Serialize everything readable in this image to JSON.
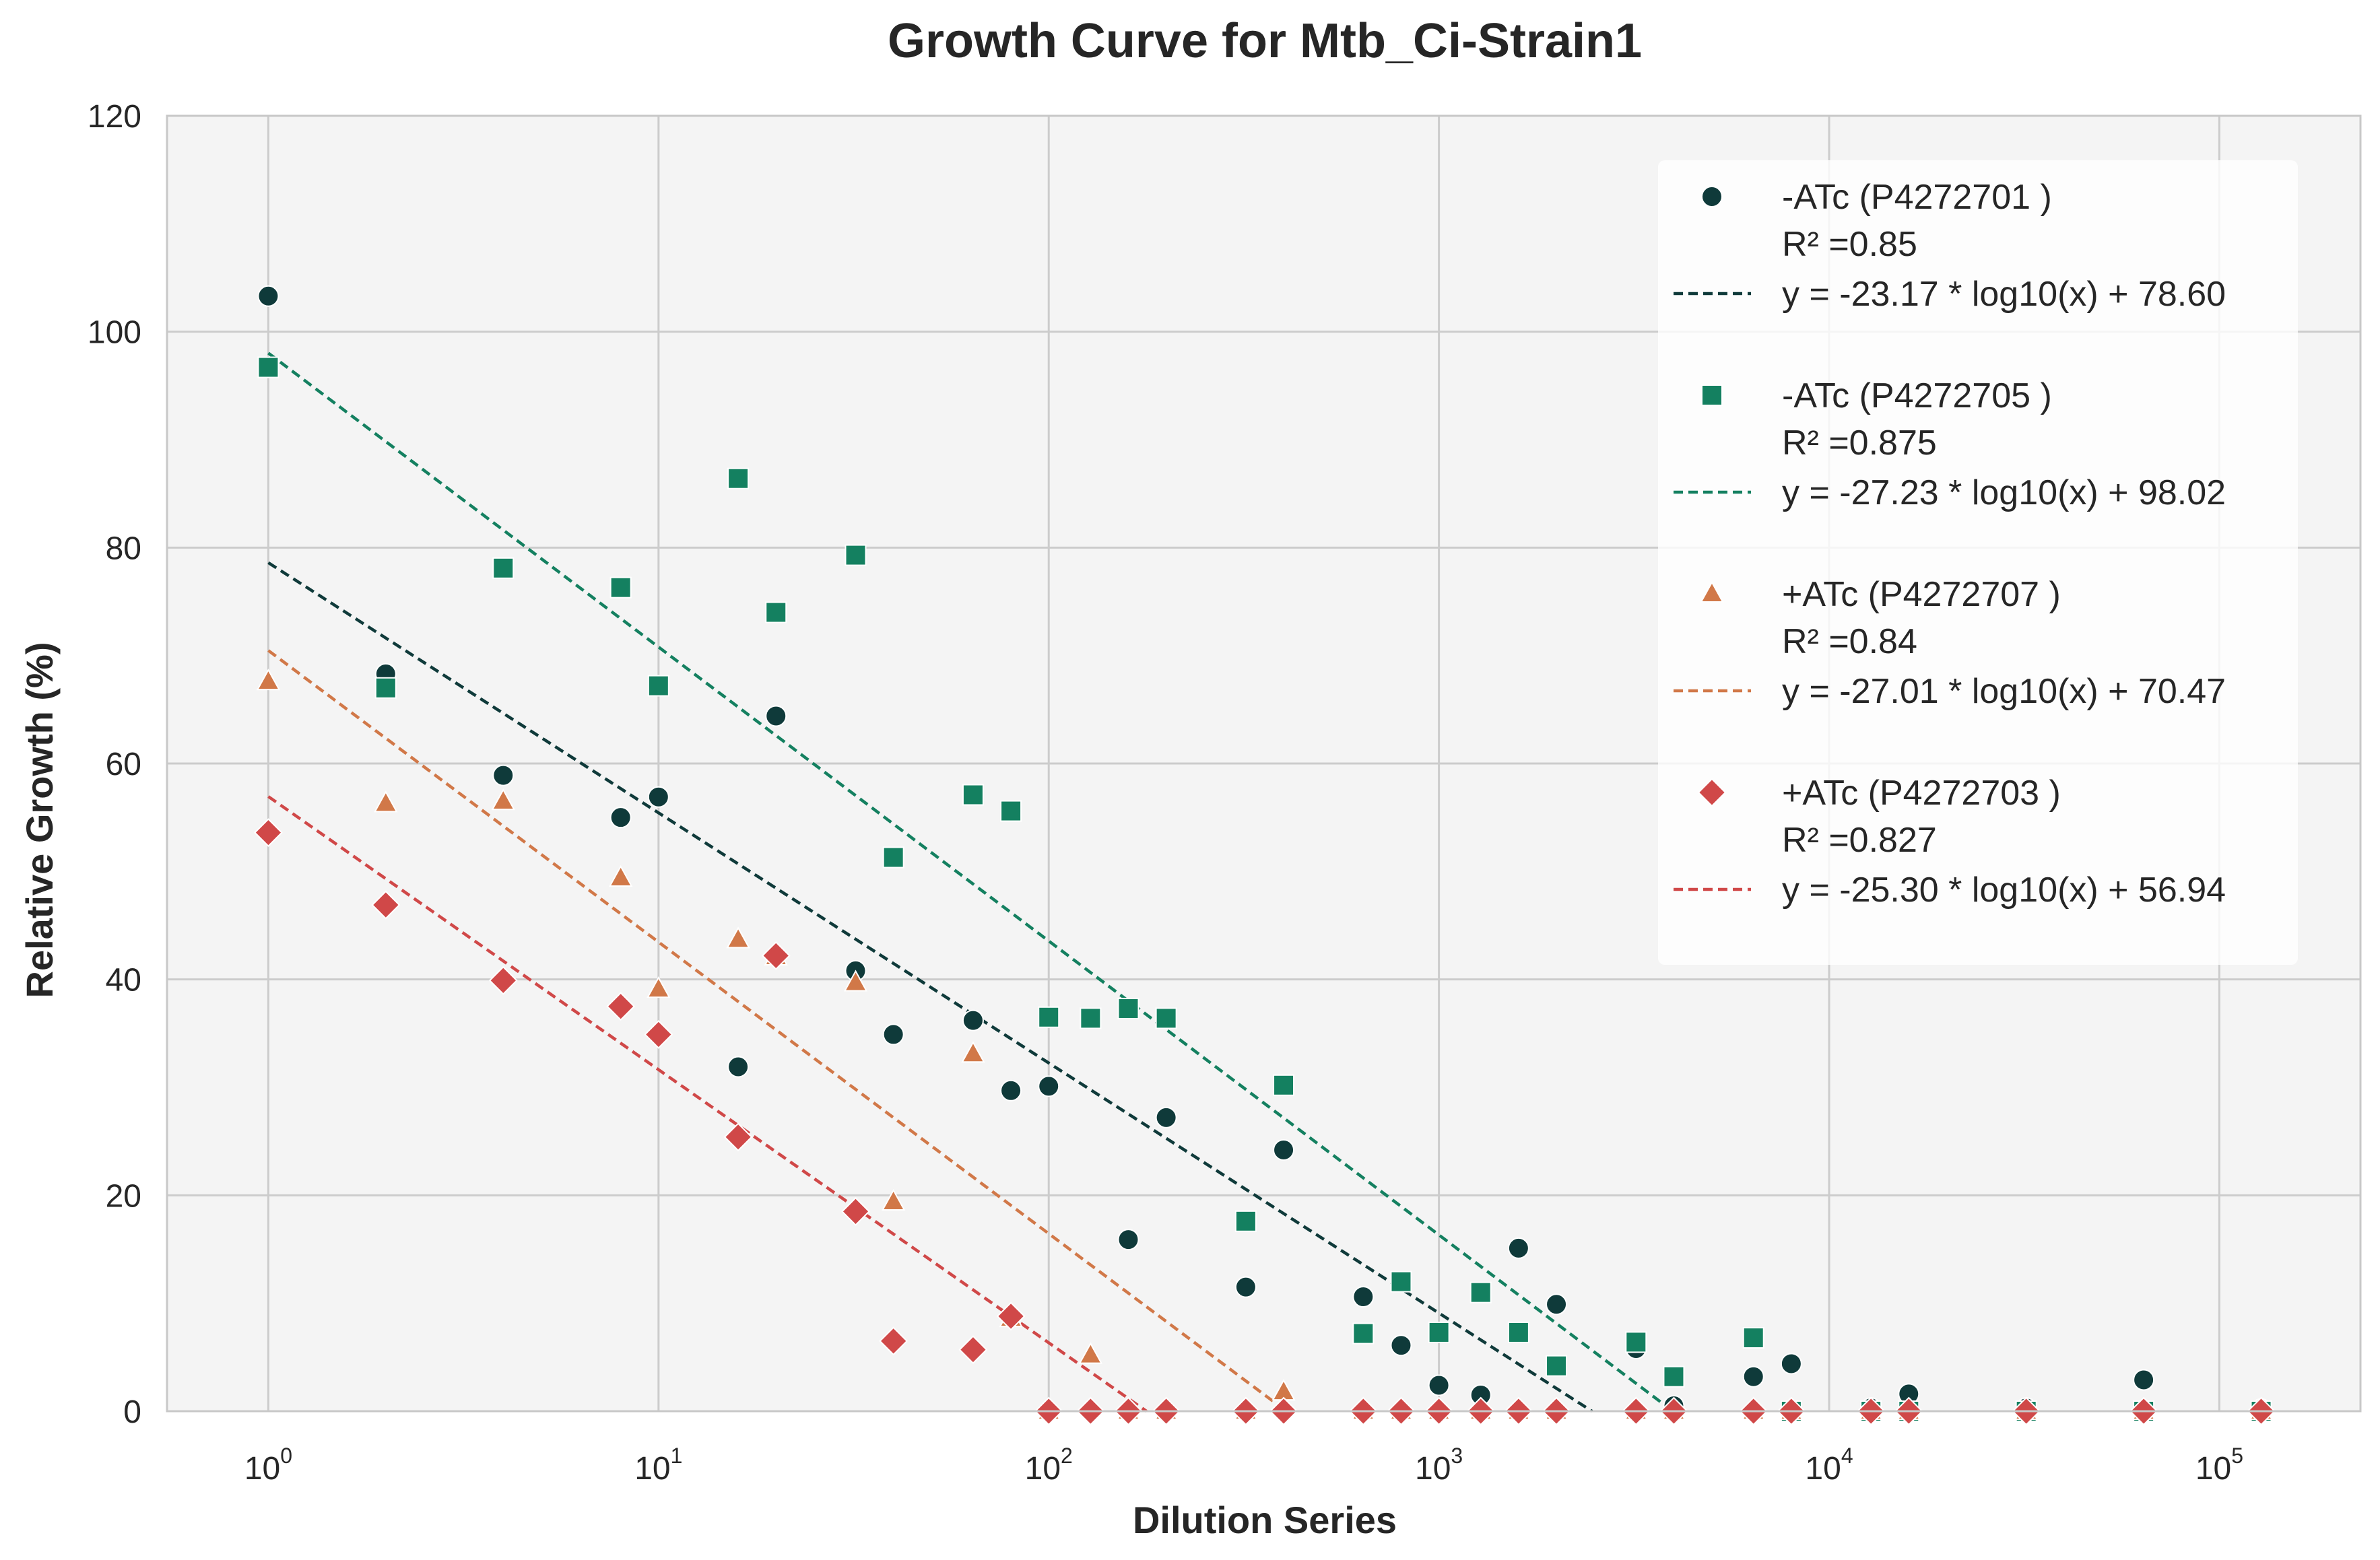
{
  "chart_data": {
    "type": "scatter",
    "title": "Growth Curve for Mtb_Ci-Strain1",
    "xlabel": "Dilution Series",
    "ylabel": "Relative Growth (%)",
    "xscale": "log",
    "xlim": [
      0.55,
      230000
    ],
    "ylim": [
      0,
      120
    ],
    "xticks": [
      1,
      10,
      100,
      1000,
      10000,
      100000
    ],
    "xtick_labels": [
      {
        "base": "10",
        "exp": "0"
      },
      {
        "base": "10",
        "exp": "1"
      },
      {
        "base": "10",
        "exp": "2"
      },
      {
        "base": "10",
        "exp": "3"
      },
      {
        "base": "10",
        "exp": "4"
      },
      {
        "base": "10",
        "exp": "5"
      }
    ],
    "yticks": [
      0,
      20,
      40,
      60,
      80,
      100,
      120
    ],
    "ytick_labels": [
      "0",
      "20",
      "40",
      "60",
      "80",
      "100",
      "120"
    ],
    "grid": true,
    "legend_position": "top-right",
    "series": [
      {
        "name": "-ATc (P4272701 )",
        "marker": "circle",
        "color": "#0f3a3a",
        "r2_label": "R² =0.85",
        "fit_label": "y = -23.17 * log10(x) + 78.60",
        "fit": {
          "slope": -23.17,
          "intercept": 78.6
        },
        "x": [
          1,
          2,
          4,
          8,
          10,
          16,
          20,
          32,
          40,
          64,
          80,
          100,
          160,
          200,
          320,
          400,
          640,
          800,
          1000,
          1280,
          1600,
          2000,
          3200,
          4000,
          6400,
          8000,
          12800,
          16000,
          32000,
          64000,
          128000
        ],
        "y": [
          103.3,
          68.3,
          58.9,
          55.0,
          56.9,
          31.9,
          64.4,
          40.8,
          34.9,
          36.2,
          29.7,
          30.1,
          15.9,
          27.2,
          11.5,
          24.2,
          10.6,
          6.1,
          2.4,
          1.5,
          15.1,
          9.9,
          5.8,
          0.5,
          3.2,
          4.4,
          0.3,
          1.6,
          0.3,
          2.9,
          0.2
        ]
      },
      {
        "name": "-ATc (P4272705 )",
        "marker": "square",
        "color": "#148060",
        "r2_label": "R² =0.875",
        "fit_label": "y = -27.23 * log10(x) + 98.02",
        "fit": {
          "slope": -27.23,
          "intercept": 98.02
        },
        "x": [
          1,
          2,
          4,
          8,
          10,
          16,
          20,
          32,
          40,
          64,
          80,
          100,
          128,
          160,
          200,
          320,
          400,
          640,
          800,
          1000,
          1280,
          1600,
          2000,
          3200,
          4000,
          6400,
          8000,
          12800,
          16000,
          32000,
          64000,
          128000
        ],
        "y": [
          96.7,
          67.0,
          78.1,
          76.3,
          67.2,
          86.4,
          74.0,
          79.3,
          51.3,
          57.1,
          55.6,
          36.5,
          36.4,
          37.3,
          36.4,
          17.6,
          30.2,
          7.2,
          12.0,
          7.3,
          11.0,
          7.3,
          4.2,
          6.4,
          3.2,
          6.8,
          0.0,
          0.0,
          0.0,
          0.0,
          0.0,
          0.0
        ]
      },
      {
        "name": "+ATc (P4272707 )",
        "marker": "triangle",
        "color": "#d17848",
        "r2_label": "R² =0.84",
        "fit_label": "y = -27.01 * log10(x) + 70.47",
        "fit": {
          "slope": -27.01,
          "intercept": 70.47
        },
        "x": [
          1,
          2,
          4,
          8,
          10,
          16,
          20,
          32,
          40,
          64,
          80,
          100,
          128,
          160,
          200,
          320,
          400,
          640,
          800,
          1000,
          1280,
          1600,
          2000,
          3200,
          4000,
          6400,
          8000,
          12800,
          16000,
          32000,
          64000,
          128000
        ],
        "y": [
          67.6,
          56.3,
          56.5,
          49.4,
          39.1,
          43.7,
          42.1,
          39.7,
          19.4,
          33.1,
          8.6,
          0.0,
          5.2,
          0.0,
          0.0,
          0.0,
          1.8,
          0.0,
          0.0,
          0.0,
          0.0,
          0.0,
          0.0,
          0.0,
          0.0,
          0.0,
          0.0,
          0.0,
          0.0,
          0.0,
          0.0,
          0.0
        ]
      },
      {
        "name": "+ATc (P4272703 )",
        "marker": "diamond",
        "color": "#d04848",
        "r2_label": "R² =0.827",
        "fit_label": "y = -25.30 * log10(x) + 56.94",
        "fit": {
          "slope": -25.3,
          "intercept": 56.94
        },
        "x": [
          1,
          2,
          4,
          8,
          10,
          16,
          20,
          32,
          40,
          64,
          80,
          100,
          128,
          160,
          200,
          320,
          400,
          640,
          800,
          1000,
          1280,
          1600,
          2000,
          3200,
          4000,
          6400,
          8000,
          12800,
          16000,
          32000,
          64000,
          128000
        ],
        "y": [
          53.6,
          46.9,
          39.9,
          37.5,
          34.9,
          25.4,
          42.2,
          18.5,
          6.5,
          5.7,
          8.8,
          0.0,
          0.0,
          0.0,
          0.0,
          0.0,
          0.0,
          0.0,
          0.0,
          0.0,
          0.0,
          0.0,
          0.0,
          0.0,
          0.0,
          0.0,
          0.0,
          0.0,
          0.0,
          0.0,
          0.0,
          0.0
        ]
      }
    ]
  }
}
